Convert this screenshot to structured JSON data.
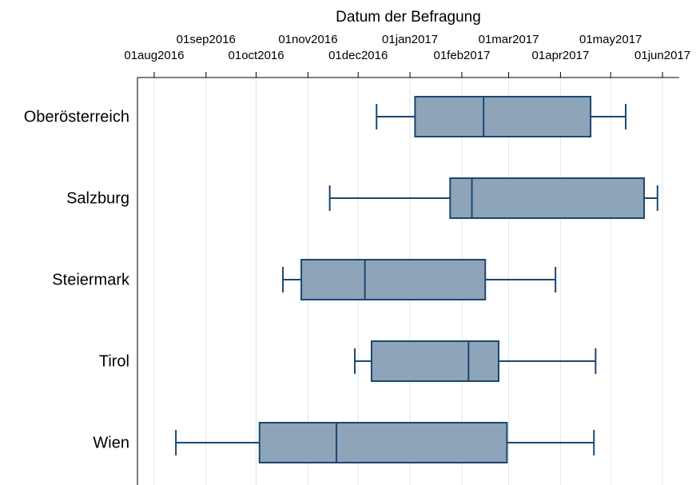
{
  "chart_data": {
    "type": "box",
    "orientation": "horizontal",
    "x_label": "Datum der Befragung",
    "categories": [
      "Oberösterreich",
      "Salzburg",
      "Steiermark",
      "Tirol",
      "Wien"
    ],
    "boxes": [
      {
        "whislo": "2016-12-12",
        "q1": "2017-01-04",
        "med": "2017-02-14",
        "q3": "2017-04-19",
        "whishi": "2017-05-10"
      },
      {
        "whislo": "2016-11-14",
        "q1": "2017-01-25",
        "med": "2017-02-07",
        "q3": "2017-05-21",
        "whishi": "2017-05-29"
      },
      {
        "whislo": "2016-10-17",
        "q1": "2016-10-28",
        "med": "2016-12-05",
        "q3": "2017-02-15",
        "whishi": "2017-03-29"
      },
      {
        "whislo": "2016-11-29",
        "q1": "2016-12-09",
        "med": "2017-02-05",
        "q3": "2017-02-23",
        "whishi": "2017-04-22"
      },
      {
        "whislo": "2016-08-14",
        "q1": "2016-10-03",
        "med": "2016-11-18",
        "q3": "2017-02-28",
        "whishi": "2017-04-21"
      }
    ],
    "color": "#8ea4b8",
    "edge_color": "#1a476f",
    "grid": true,
    "grid_color": "#dfe9ef",
    "xlim": [
      "2016-07-22",
      "2017-06-11"
    ],
    "xticks": [
      {
        "value": "2016-08-01",
        "label": "01aug2016"
      },
      {
        "value": "2016-09-01",
        "label": "01sep2016"
      },
      {
        "value": "2016-10-01",
        "label": "01oct2016"
      },
      {
        "value": "2016-11-01",
        "label": "01nov2016"
      },
      {
        "value": "2016-12-01",
        "label": "01dec2016"
      },
      {
        "value": "2017-01-01",
        "label": "01jan2017"
      },
      {
        "value": "2017-02-01",
        "label": "01feb2017"
      },
      {
        "value": "2017-03-01",
        "label": "01mar2017"
      },
      {
        "value": "2017-04-01",
        "label": "01apr2017"
      },
      {
        "value": "2017-05-01",
        "label": "01may2017"
      },
      {
        "value": "2017-06-01",
        "label": "01jun2017"
      }
    ]
  }
}
